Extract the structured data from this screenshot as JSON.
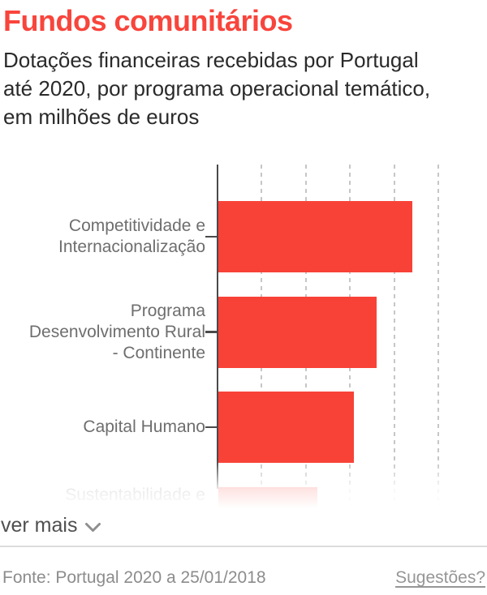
{
  "header": {
    "title": "Fundos comunitários",
    "subtitle": "Dotações financeiras recebidas por Portugal\naté 2020, por programa operacional temático,\nem milhões de euros"
  },
  "chart_data": {
    "type": "bar",
    "orientation": "horizontal",
    "title": "Fundos comunitários",
    "xlabel": "milhões de euros",
    "ylabel": "programa operacional temático",
    "categories": [
      "Competitividade e\nInternacionalização",
      "Programa\nDesenvolvimento Rural\n- Continente",
      "Capital Humano",
      "Sustentabilidade e"
    ],
    "values": [
      4400,
      3580,
      3070,
      2250
    ],
    "axis_range": [
      0,
      6000
    ],
    "gridline_step": 1000,
    "gridline_count": 5,
    "tick_labels_visible": false,
    "legend": "none",
    "grid": "dashed-vertical",
    "bar_color": "#f84238",
    "truncated_last_row": true
  },
  "ver_mais": {
    "label": "ver mais"
  },
  "footer": {
    "source": "Fonte: Portugal 2020 a 25/01/2018",
    "suggestions": "Sugestões?"
  },
  "colors": {
    "accent": "#f8453c",
    "bar": "#f84238",
    "axis": "#4a4a4a",
    "gridline": "#c6c6c6",
    "category_label": "#6e6e6e",
    "muted_text": "#8c8c8c"
  }
}
